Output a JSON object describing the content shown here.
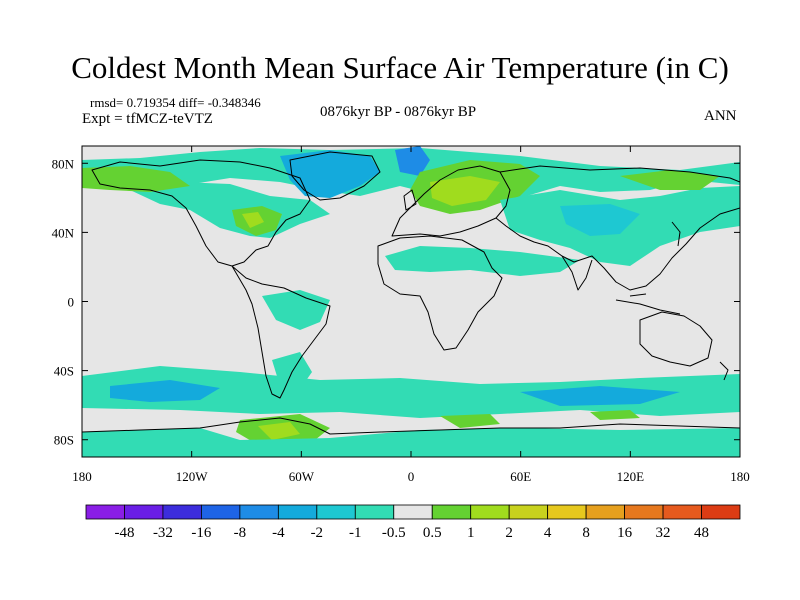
{
  "title": "Coldest Month Mean Surface Air Temperature (in C)",
  "stats_line": "rmsd= 0.719354 diff= -0.348346",
  "experiment_line": "Expt = tfMCZ-teVTZ",
  "period_label": "0876kyr BP - 0876kyr BP",
  "season_label": "ANN",
  "map": {
    "projection": "cylindrical-equidistant",
    "lon_range": [
      -180,
      180
    ],
    "lat_range": [
      -90,
      90
    ],
    "lon_ticks": [
      {
        "value": -180,
        "label": "180"
      },
      {
        "value": -120,
        "label": "120W"
      },
      {
        "value": -60,
        "label": "60W"
      },
      {
        "value": 0,
        "label": "0"
      },
      {
        "value": 60,
        "label": "60E"
      },
      {
        "value": 120,
        "label": "120E"
      },
      {
        "value": 180,
        "label": "180"
      }
    ],
    "lat_ticks": [
      {
        "value": 80,
        "label": "80N"
      },
      {
        "value": 40,
        "label": "40N"
      },
      {
        "value": 0,
        "label": "0"
      },
      {
        "value": -40,
        "label": "40S"
      },
      {
        "value": -80,
        "label": "80S"
      }
    ],
    "background_color": "#e6e6e6",
    "coastline_color": "#000000"
  },
  "colorbar": {
    "colors": [
      "#8a1ee6",
      "#6a1ee6",
      "#3c2ddc",
      "#1e64e6",
      "#1e8ce6",
      "#14aadc",
      "#1ec8d2",
      "#32dcb4",
      "#e6e6e6",
      "#64d232",
      "#a0dc1e",
      "#c8d21e",
      "#e6c81e",
      "#e6a01e",
      "#e6781e",
      "#e65a1e",
      "#dc3c14"
    ],
    "labels": [
      "-48",
      "-32",
      "-16",
      "-8",
      "-4",
      "-2",
      "-1",
      "-0.5",
      "0.5",
      "1",
      "2",
      "4",
      "8",
      "16",
      "32",
      "48"
    ]
  }
}
